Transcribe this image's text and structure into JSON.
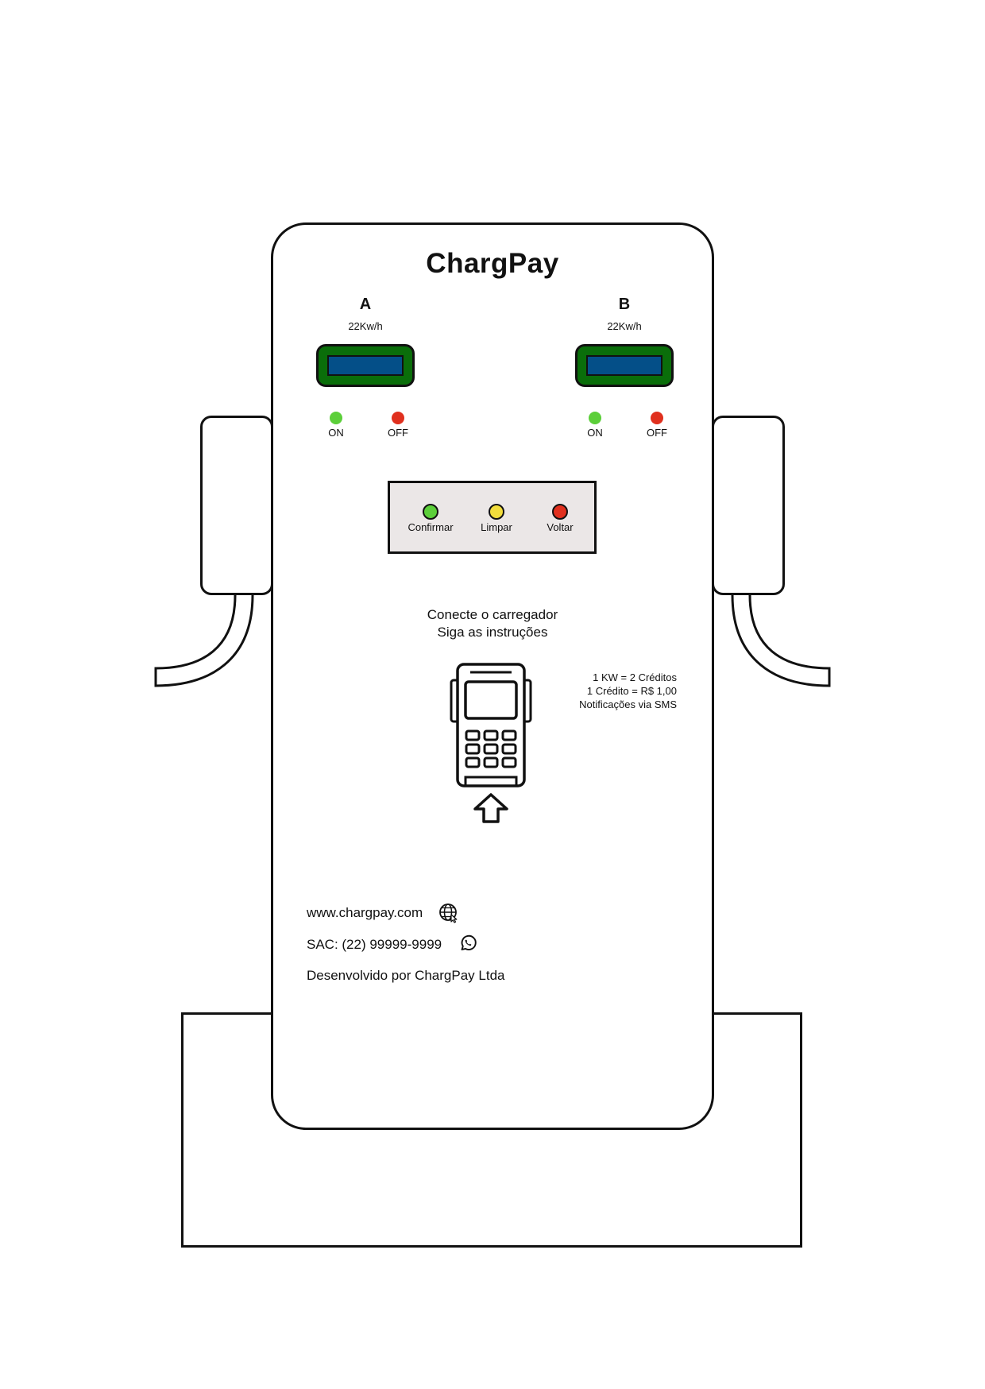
{
  "brand": {
    "title": "ChargPay"
  },
  "ports": [
    {
      "letter": "A",
      "power": "22Kw/h",
      "on_label": "ON",
      "off_label": "OFF"
    },
    {
      "letter": "B",
      "power": "22Kw/h",
      "on_label": "ON",
      "off_label": "OFF"
    }
  ],
  "keypad": {
    "buttons": [
      {
        "label": "Confirmar",
        "color": "#5ccf3a"
      },
      {
        "label": "Limpar",
        "color": "#f2dd3c"
      },
      {
        "label": "Voltar",
        "color": "#e0301e"
      }
    ]
  },
  "instructions": {
    "line1": "Conecte o carregador",
    "line2": "Siga as instruções"
  },
  "tariff": {
    "line1": "1 KW = 2 Créditos",
    "line2": "1 Crédito = R$ 1,00",
    "line3": "Notificações via SMS"
  },
  "footer": {
    "website": "www.chargpay.com",
    "sac": "SAC: (22) 99999-9999",
    "developer": "Desenvolvido por ChargPay Ltda"
  },
  "colors": {
    "display_frame": "#0a6e0a",
    "display_screen": "#044f88",
    "led_on": "#5ccf3a",
    "led_off": "#e0301e",
    "keypad_bg": "#ebe7e7"
  },
  "icons": {
    "website": "globe-icon",
    "sac": "whatsapp-icon",
    "terminal": "card-terminal-icon",
    "insert": "arrow-up-icon"
  }
}
